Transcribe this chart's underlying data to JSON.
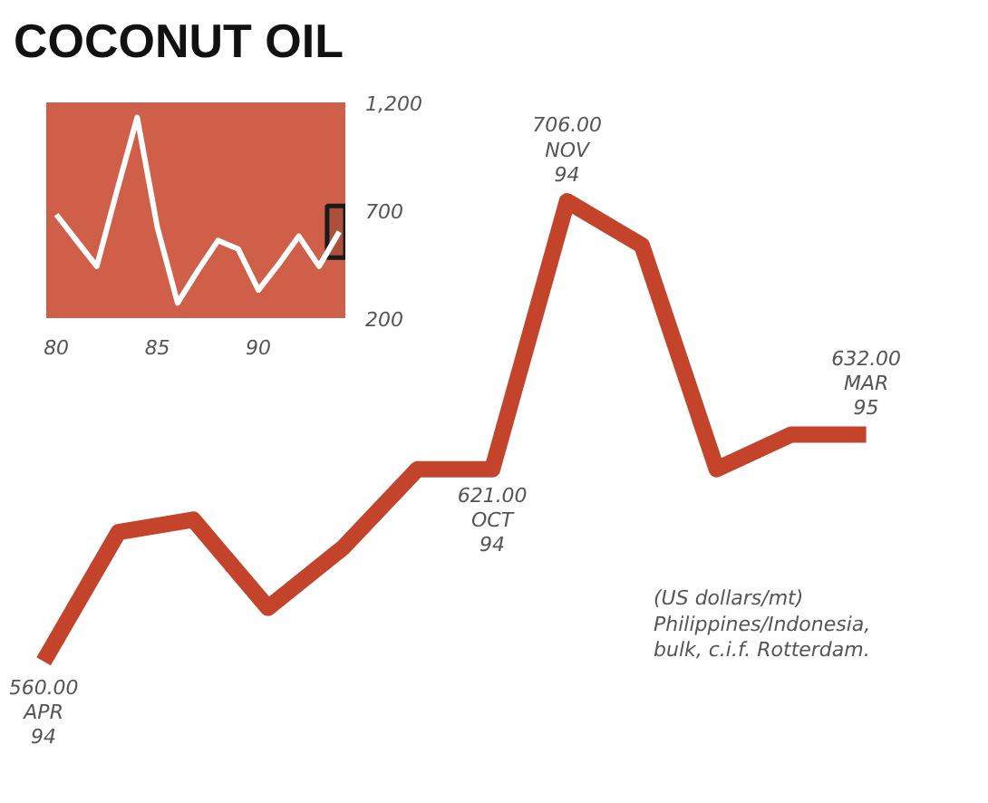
{
  "chart_data": [
    {
      "type": "line",
      "title": "COCONUT OIL",
      "categories": [
        null,
        null,
        null,
        null,
        null,
        null,
        null,
        null,
        null,
        null,
        null,
        null
      ],
      "series": [
        {
          "color": "#c4432b",
          "values": [
            560,
            601,
            605,
            577,
            596,
            621,
            621,
            706,
            692,
            621,
            632,
            632
          ],
          "value_labels": [
            "560.00\nAPR\n94",
            null,
            null,
            null,
            null,
            null,
            "621.00\nOCT\n94",
            "706.00\nNOV\n94",
            null,
            null,
            null,
            "632.00\nMAR\n95"
          ]
        }
      ],
      "annotations": [
        "(US dollars/mt)\nPhilippines/Indonesia,\nbulk, c.i.f. Rotterdam."
      ]
    },
    {
      "type": "line",
      "x": [
        80,
        81,
        82,
        83,
        84,
        85,
        86,
        87,
        88,
        89,
        90,
        91,
        92,
        93,
        94
      ],
      "series": [
        {
          "color": "#ffffff",
          "values": [
            680,
            560,
            440,
            790,
            1130,
            620,
            270,
            420,
            560,
            520,
            330,
            450,
            580,
            440,
            600
          ]
        }
      ],
      "xlim": [
        79.5,
        94.3
      ],
      "ylim": [
        200,
        1200
      ],
      "xticks": [
        80,
        85,
        90
      ],
      "yticks": [
        200,
        700,
        {
          "value": 1200,
          "label": "1,200"
        }
      ],
      "bands": [
        {
          "axis": "y",
          "from": 200,
          "to": 1200,
          "color": "#cf5f48"
        },
        {
          "axis": "x",
          "from": 93.4,
          "to": 94.3,
          "color": "#1a1a1a"
        }
      ]
    }
  ]
}
